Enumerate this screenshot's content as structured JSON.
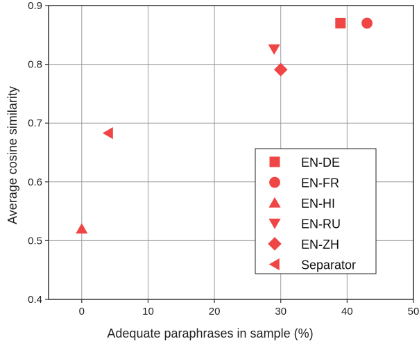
{
  "chart_data": {
    "type": "scatter",
    "xlabel": "Adequate paraphrases in sample (%)",
    "ylabel": "Average cosine similarity",
    "xlim": [
      -5,
      50
    ],
    "ylim": [
      0.4,
      0.9
    ],
    "xticks": [
      "0",
      "10",
      "20",
      "30",
      "40",
      "50"
    ],
    "yticks": [
      "0.4",
      "0.5",
      "0.6",
      "0.7",
      "0.8",
      "0.9"
    ],
    "grid": true,
    "legend_position": "lower-right",
    "marker_color": "#f04545",
    "series": [
      {
        "name": "EN-DE",
        "marker": "square",
        "x": 39,
        "y": 0.87
      },
      {
        "name": "EN-FR",
        "marker": "circle",
        "x": 43,
        "y": 0.87
      },
      {
        "name": "EN-HI",
        "marker": "triangle-up",
        "x": 0,
        "y": 0.52
      },
      {
        "name": "EN-RU",
        "marker": "triangle-down",
        "x": 29,
        "y": 0.826
      },
      {
        "name": "EN-ZH",
        "marker": "diamond",
        "x": 30,
        "y": 0.791
      },
      {
        "name": "Separator",
        "marker": "triangle-left",
        "x": 4,
        "y": 0.683
      }
    ]
  }
}
